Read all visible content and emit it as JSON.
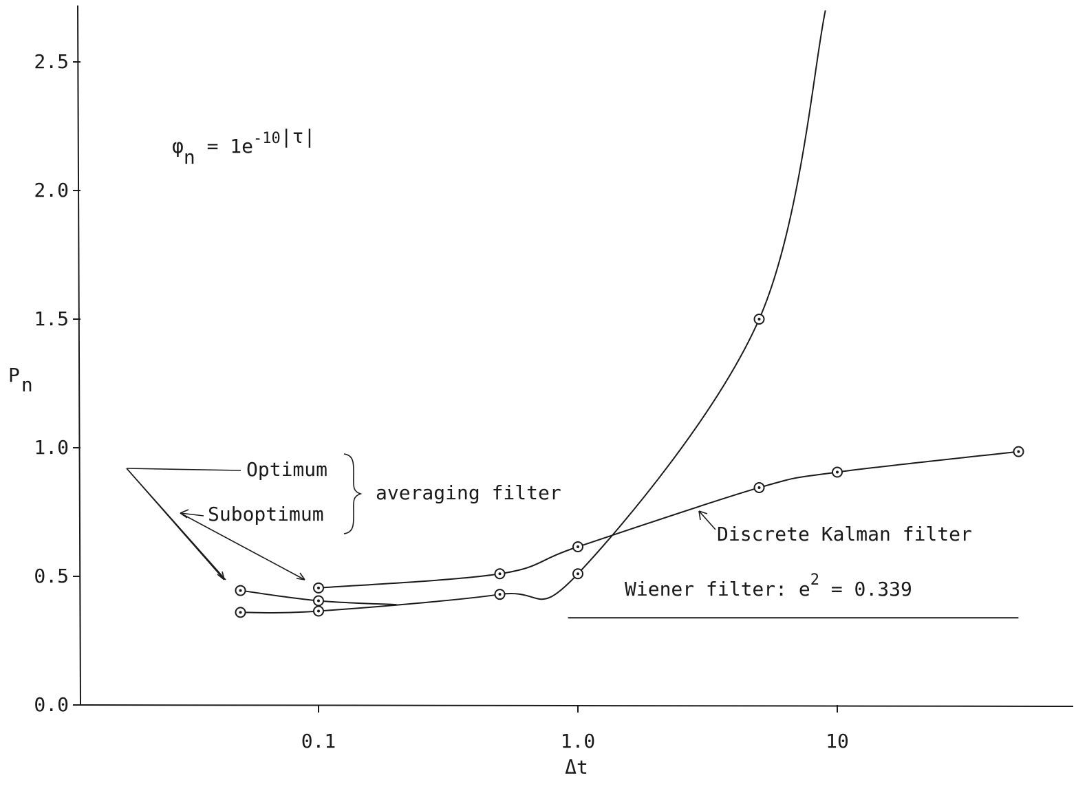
{
  "chart_data": {
    "type": "line",
    "xscale": "log",
    "xlabel": "Δt",
    "ylabel": "P",
    "ylabel_subscript": "n",
    "ylim": [
      0.0,
      2.7
    ],
    "xlim": [
      0.01,
      100
    ],
    "x_ticks": [
      {
        "value": 0.1,
        "label": "0.1"
      },
      {
        "value": 1.0,
        "label": "1.0"
      },
      {
        "value": 10,
        "label": "10"
      }
    ],
    "y_ticks": [
      {
        "value": 0.0,
        "label": "0.0"
      },
      {
        "value": 0.5,
        "label": "0.5"
      },
      {
        "value": 1.0,
        "label": "1.0"
      },
      {
        "value": 1.5,
        "label": "1.5"
      },
      {
        "value": 2.0,
        "label": "2.0"
      },
      {
        "value": 2.5,
        "label": "2.5"
      }
    ],
    "series": [
      {
        "name": "Optimum",
        "x": [
          0.05,
          0.1,
          0.5,
          1.0,
          5.0,
          9.0
        ],
        "y": [
          0.36,
          0.365,
          0.43,
          0.51,
          1.5,
          2.7
        ],
        "markers": [
          true,
          true,
          true,
          true,
          true,
          false
        ]
      },
      {
        "name": "Suboptimum",
        "x": [
          0.05,
          0.1,
          0.2
        ],
        "y": [
          0.445,
          0.405,
          0.39
        ],
        "markers": [
          true,
          true,
          false
        ]
      },
      {
        "name": "Discrete Kalman filter",
        "x": [
          0.1,
          0.5,
          1.0,
          5.0,
          10,
          50
        ],
        "y": [
          0.455,
          0.51,
          0.615,
          0.845,
          0.905,
          0.985
        ],
        "markers": [
          true,
          true,
          true,
          true,
          true,
          true
        ]
      }
    ],
    "reference_lines": [
      {
        "name": "Wiener filter",
        "y": 0.339,
        "x_range": [
          1.1,
          60
        ]
      }
    ],
    "annotations": {
      "formula_lhs": "φ",
      "formula_lhs_sub": "n",
      "formula_mid": " = 1e",
      "formula_exp": "-10",
      "formula_rhs": "|τ|",
      "optimum_label": "Optimum",
      "suboptimum_label": "Suboptimum",
      "averaging_label": "averaging filter",
      "kalman_label": "Discrete Kalman filter",
      "wiener_label": "Wiener filter: e",
      "wiener_sup": "2",
      "wiener_value": " = 0.339"
    },
    "grid": false
  }
}
